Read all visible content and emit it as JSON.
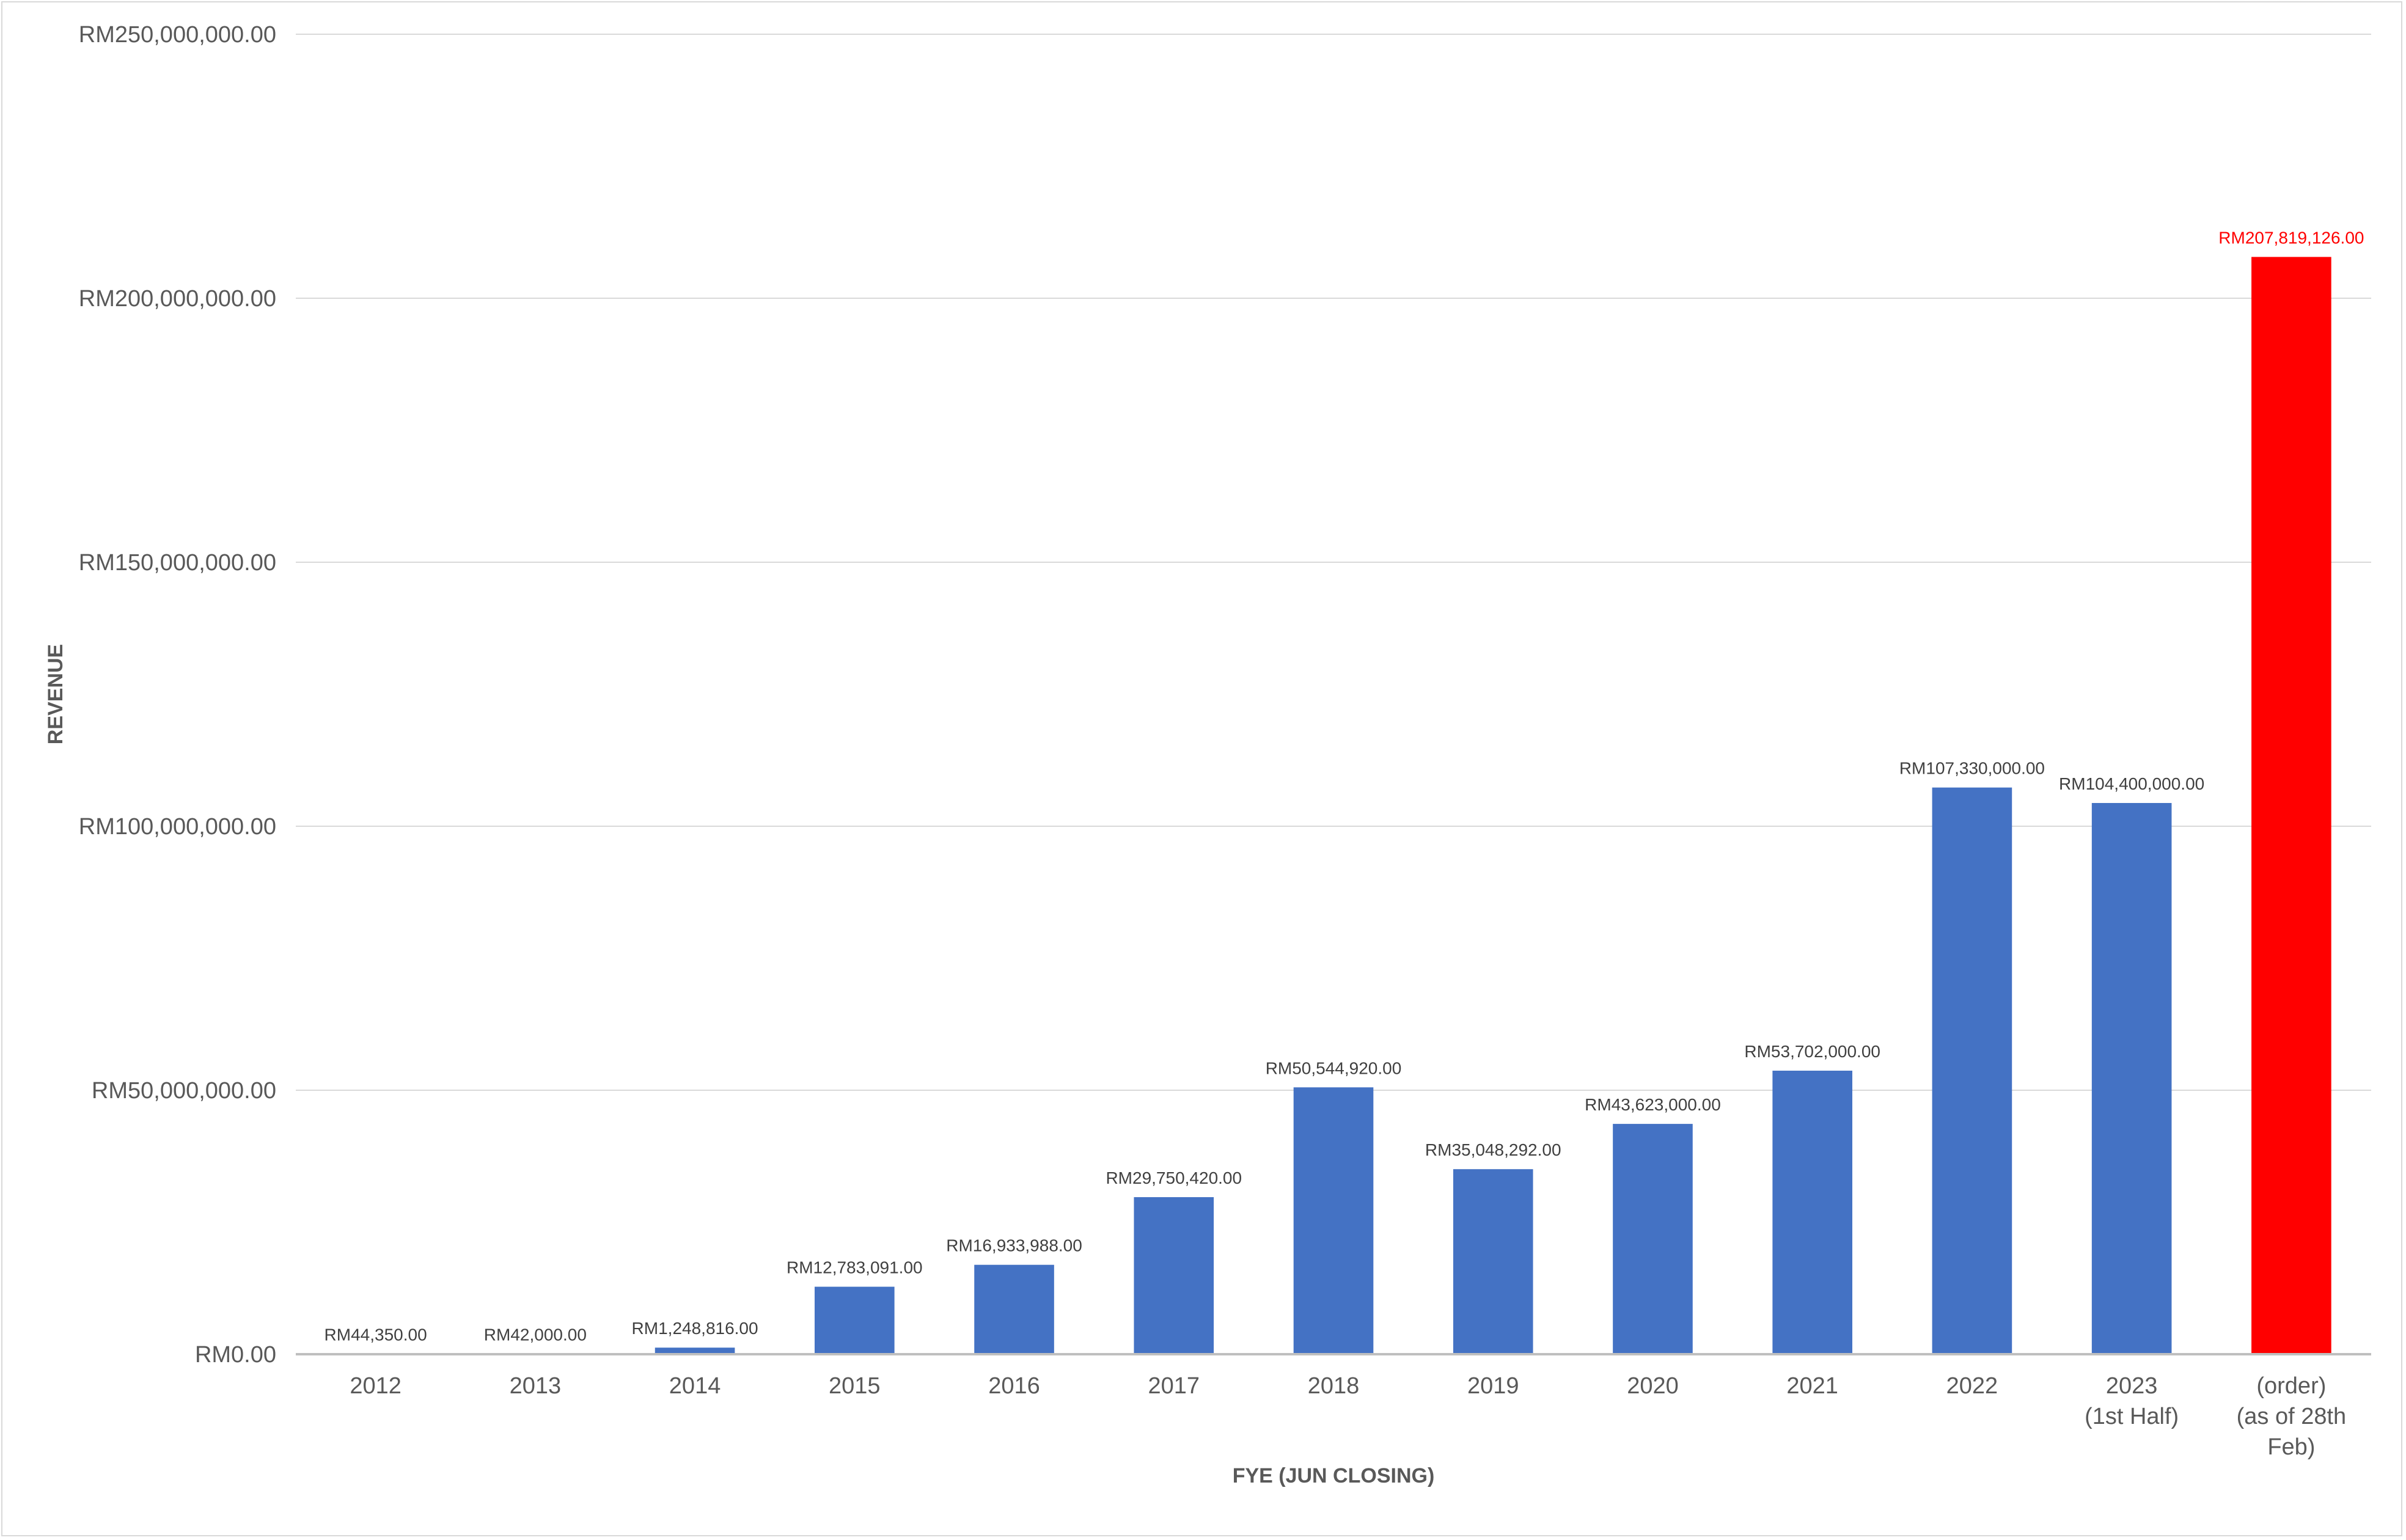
{
  "chart_data": {
    "type": "bar",
    "title": "",
    "xlabel": "FYE (JUN CLOSING)",
    "ylabel": "REVENUE",
    "ylim": [
      0,
      250000000
    ],
    "yticks": [
      {
        "value": 0,
        "label": "RM0.00"
      },
      {
        "value": 50000000,
        "label": "RM50,000,000.00"
      },
      {
        "value": 100000000,
        "label": "RM100,000,000.00"
      },
      {
        "value": 150000000,
        "label": "RM150,000,000.00"
      },
      {
        "value": 200000000,
        "label": "RM200,000,000.00"
      },
      {
        "value": 250000000,
        "label": "RM250,000,000.00"
      }
    ],
    "grid": true,
    "categories": [
      [
        "2012"
      ],
      [
        "2013"
      ],
      [
        "2014"
      ],
      [
        "2015"
      ],
      [
        "2016"
      ],
      [
        "2017"
      ],
      [
        "2018"
      ],
      [
        "2019"
      ],
      [
        "2020"
      ],
      [
        "2021"
      ],
      [
        "2022"
      ],
      [
        "2023",
        "(1st Half)"
      ],
      [
        "(order)",
        "(as of 28th",
        "Feb)"
      ]
    ],
    "values": [
      44350,
      42000,
      1248816,
      12783091,
      16933988,
      29750420,
      50544920,
      35048292,
      43623000,
      53702000,
      107330000,
      104400000,
      207819126
    ],
    "data_labels": [
      "RM44,350.00",
      "RM42,000.00",
      "RM1,248,816.00",
      "RM12,783,091.00",
      "RM16,933,988.00",
      "RM29,750,420.00",
      "RM50,544,920.00",
      "RM35,048,292.00",
      "RM43,623,000.00",
      "RM53,702,000.00",
      "RM107,330,000.00",
      "RM104,400,000.00",
      "RM207,819,126.00"
    ],
    "bar_colors": [
      "#4472c4",
      "#4472c4",
      "#4472c4",
      "#4472c4",
      "#4472c4",
      "#4472c4",
      "#4472c4",
      "#4472c4",
      "#4472c4",
      "#4472c4",
      "#4472c4",
      "#4472c4",
      "#ff0000"
    ],
    "label_colors": [
      "#404040",
      "#404040",
      "#404040",
      "#404040",
      "#404040",
      "#404040",
      "#404040",
      "#404040",
      "#404040",
      "#404040",
      "#404040",
      "#404040",
      "#ff0000"
    ],
    "colors": {
      "grid": "#d9d9d9",
      "axis": "#bfbfbf"
    }
  }
}
